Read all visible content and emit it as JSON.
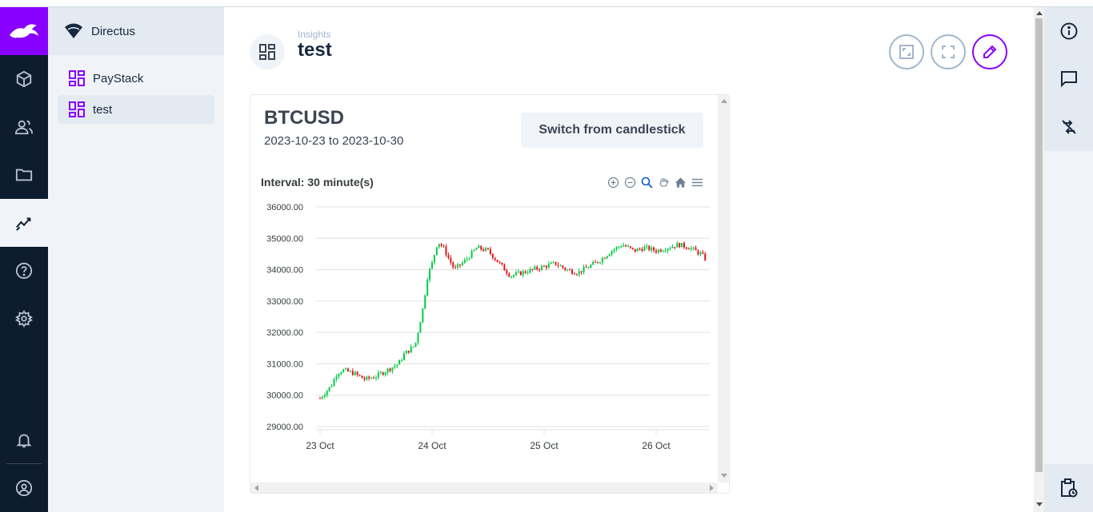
{
  "app": {
    "project_name": "Directus"
  },
  "navigation": {
    "items": [
      {
        "label": "PayStack",
        "active": false
      },
      {
        "label": "test",
        "active": true
      }
    ]
  },
  "header": {
    "breadcrumb": "Insights",
    "title": "test"
  },
  "panel": {
    "title": "BTCUSD",
    "date_from": "2023-10-23",
    "date_sep": "to",
    "date_to": "2023-10-30",
    "switch_label": "Switch from candlestick",
    "interval_label": "Interval: 30 minute(s)"
  },
  "colors": {
    "accent": "#8800ff",
    "up": "#00cc44",
    "down": "#e0161b"
  },
  "chart_data": {
    "type": "candlestick",
    "x_ticks": [
      "23 Oct",
      "24 Oct",
      "25 Oct",
      "26 Oct"
    ],
    "y_ticks": [
      "36000.00",
      "35000.00",
      "34000.00",
      "33000.00",
      "32000.00",
      "31000.00",
      "30000.00",
      "29000.00"
    ],
    "ylim": [
      29000,
      36000
    ],
    "grid": true,
    "path_close": [
      [
        0.0,
        29900
      ],
      [
        0.1,
        30300
      ],
      [
        0.15,
        30700
      ],
      [
        0.2,
        30800
      ],
      [
        0.3,
        30700
      ],
      [
        0.4,
        30500
      ],
      [
        0.5,
        30600
      ],
      [
        0.6,
        30800
      ],
      [
        0.7,
        31000
      ],
      [
        0.75,
        31300
      ],
      [
        0.85,
        31600
      ],
      [
        0.92,
        32800
      ],
      [
        0.96,
        33800
      ],
      [
        1.0,
        34200
      ],
      [
        1.05,
        34900
      ],
      [
        1.1,
        34700
      ],
      [
        1.2,
        34000
      ],
      [
        1.3,
        34300
      ],
      [
        1.4,
        34700
      ],
      [
        1.5,
        34600
      ],
      [
        1.6,
        34200
      ],
      [
        1.7,
        33800
      ],
      [
        1.8,
        33900
      ],
      [
        1.9,
        34000
      ],
      [
        2.0,
        34100
      ],
      [
        2.1,
        34200
      ],
      [
        2.2,
        34000
      ],
      [
        2.3,
        33900
      ],
      [
        2.4,
        34100
      ],
      [
        2.5,
        34300
      ],
      [
        2.6,
        34600
      ],
      [
        2.7,
        34800
      ],
      [
        2.8,
        34600
      ],
      [
        2.9,
        34700
      ],
      [
        3.0,
        34600
      ],
      [
        3.1,
        34700
      ],
      [
        3.2,
        34800
      ],
      [
        3.3,
        34700
      ],
      [
        3.4,
        34500
      ],
      [
        3.45,
        34300
      ]
    ]
  },
  "icons": {
    "logo": "directus-rabbit-icon",
    "modules": [
      "content-cube-icon",
      "users-icon",
      "folder-icon",
      "insights-icon",
      "help-icon",
      "settings-icon"
    ],
    "bottom": [
      "notifications-icon",
      "user-avatar-icon"
    ],
    "header_buttons": [
      "fit-icon",
      "fullscreen-icon",
      "edit-icon"
    ],
    "sidebar": [
      "info-icon",
      "comments-icon",
      "revisions-icon",
      "clipboard-icon"
    ]
  }
}
